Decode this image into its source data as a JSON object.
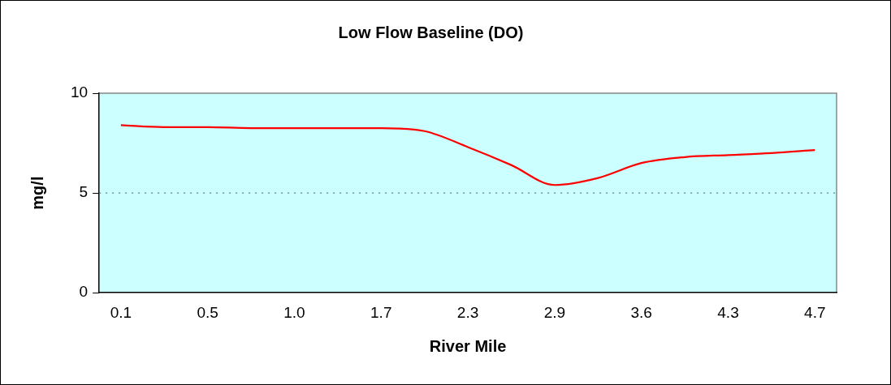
{
  "chart_data": {
    "type": "line",
    "title": "Low Flow Baseline (DO)",
    "xlabel": "River Mile",
    "ylabel": "mg/l",
    "categories": [
      "0.1",
      null,
      "0.5",
      null,
      "1.0",
      null,
      "1.7",
      null,
      "2.3",
      null,
      "2.9",
      null,
      "3.6",
      null,
      "4.3",
      null,
      "4.7"
    ],
    "series": [
      {
        "color": "#ff0000",
        "values": [
          8.4,
          8.3,
          8.3,
          8.25,
          8.25,
          8.25,
          8.25,
          8.1,
          7.3,
          6.4,
          5.4,
          5.75,
          6.5,
          6.8,
          6.9,
          7.0,
          7.15
        ]
      }
    ],
    "ylim": [
      0,
      10
    ],
    "yticks": [
      0,
      5,
      10
    ],
    "grid": false,
    "legend": false,
    "marker": "none",
    "line_style": "solid",
    "ref_lines": [
      {
        "axis": "y",
        "value": 5,
        "color": "#555555",
        "line_style": "dotted"
      }
    ]
  }
}
